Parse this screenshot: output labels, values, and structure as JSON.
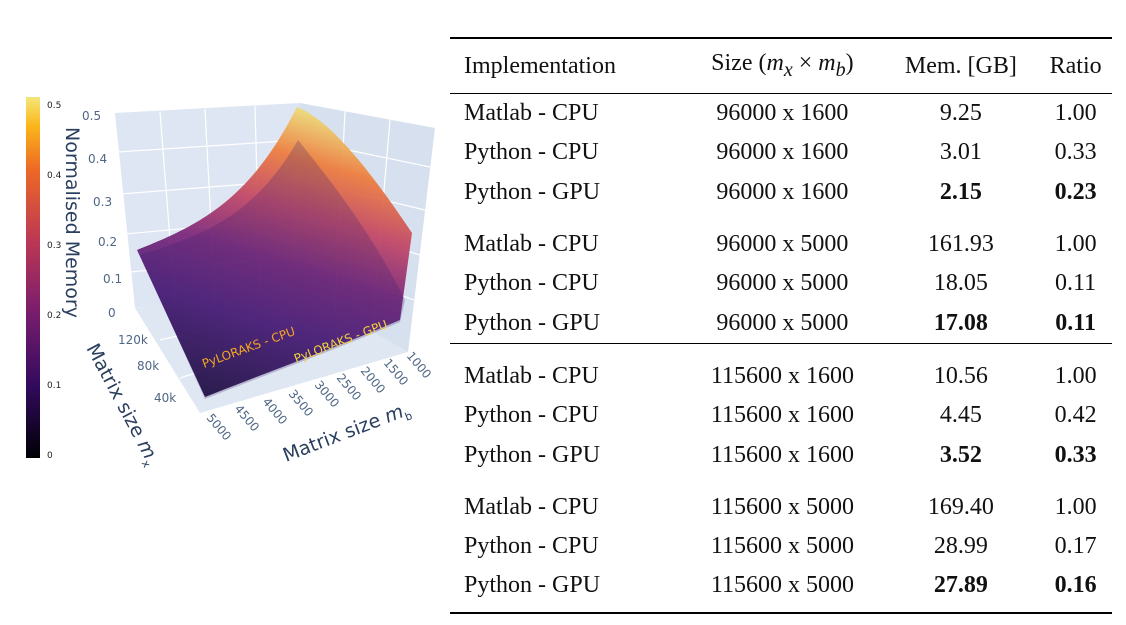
{
  "chart_data": [
    {
      "type": "surface",
      "zlabel": "Normalised Memory",
      "xlabel": "Matrix size m_x",
      "ylabel": "Matrix size m_b",
      "x_ticks": [
        "120k",
        "80k",
        "40k"
      ],
      "y_ticks": [
        "5000",
        "4500",
        "4000",
        "3500",
        "3000",
        "2500",
        "2000",
        "1500",
        "1000"
      ],
      "z_ticks": [
        "0.5",
        "0.4",
        "0.3",
        "0.2",
        "0.1",
        "0"
      ],
      "zlim": [
        0,
        0.5
      ],
      "colorbar": {
        "ticks": [
          "0.5",
          "0.4",
          "0.3",
          "0.2",
          "0.1",
          "0"
        ],
        "range": [
          0,
          0.5
        ],
        "colorscale": "inferno"
      },
      "annotations": [
        "PyLORAKS - CPU",
        "PyLORAKS - GPU"
      ],
      "colors": {
        "cpu_label": "#f5a623",
        "gpu_label": "#f2d43d",
        "scene_bg": "#dde6f2",
        "axis_text": "#2a3f5f"
      }
    },
    {
      "type": "table",
      "headers": [
        "Implementation",
        "Size (m_x × m_b)",
        "Mem. [GB]",
        "Ratio"
      ],
      "header_size_prefix": "Size (",
      "header_size_mx": "m",
      "header_size_mx_sub": "x",
      "header_size_times": " × ",
      "header_size_mb": "m",
      "header_size_mb_sub": "b",
      "header_size_suffix": ")",
      "rows": [
        {
          "impl": "Matlab - CPU",
          "size": "96000 x 1600",
          "mem": "9.25",
          "ratio": "1.00",
          "bold": false
        },
        {
          "impl": "Python - CPU",
          "size": "96000 x 1600",
          "mem": "3.01",
          "ratio": "0.33",
          "bold": false
        },
        {
          "impl": "Python - GPU",
          "size": "96000 x 1600",
          "mem": "2.15",
          "ratio": "0.23",
          "bold": true
        },
        {
          "impl": "Matlab - CPU",
          "size": "96000 x 5000",
          "mem": "161.93",
          "ratio": "1.00",
          "bold": false
        },
        {
          "impl": "Python - CPU",
          "size": "96000 x 5000",
          "mem": "18.05",
          "ratio": "0.11",
          "bold": false
        },
        {
          "impl": "Python - GPU",
          "size": "96000 x 5000",
          "mem": "17.08",
          "ratio": "0.11",
          "bold": true
        },
        {
          "impl": "Matlab - CPU",
          "size": "115600 x 1600",
          "mem": "10.56",
          "ratio": "1.00",
          "bold": false
        },
        {
          "impl": "Python - CPU",
          "size": "115600 x 1600",
          "mem": "4.45",
          "ratio": "0.42",
          "bold": false
        },
        {
          "impl": "Python - GPU",
          "size": "115600 x 1600",
          "mem": "3.52",
          "ratio": "0.33",
          "bold": true
        },
        {
          "impl": "Matlab - CPU",
          "size": "115600 x 5000",
          "mem": "169.40",
          "ratio": "1.00",
          "bold": false
        },
        {
          "impl": "Python - CPU",
          "size": "115600 x 5000",
          "mem": "28.99",
          "ratio": "0.17",
          "bold": false
        },
        {
          "impl": "Python - GPU",
          "size": "115600 x 5000",
          "mem": "27.89",
          "ratio": "0.16",
          "bold": true
        }
      ]
    }
  ]
}
